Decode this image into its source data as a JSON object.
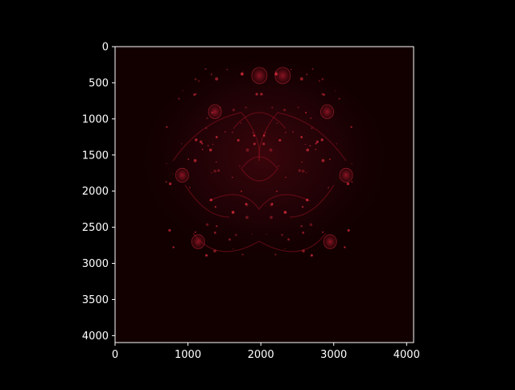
{
  "chart_data": {
    "type": "heatmap",
    "title": "",
    "xlabel": "",
    "ylabel": "",
    "xlim": [
      0,
      4096
    ],
    "ylim": [
      4096,
      0
    ],
    "x_ticks": [
      {
        "value": 0,
        "label": "0"
      },
      {
        "value": 1000,
        "label": "1000"
      },
      {
        "value": 2000,
        "label": "2000"
      },
      {
        "value": 3000,
        "label": "3000"
      },
      {
        "value": 4000,
        "label": "4000"
      }
    ],
    "y_ticks": [
      {
        "value": 0,
        "label": "0"
      },
      {
        "value": 500,
        "label": "500"
      },
      {
        "value": 1000,
        "label": "1000"
      },
      {
        "value": 1500,
        "label": "1500"
      },
      {
        "value": 2000,
        "label": "2000"
      },
      {
        "value": 2500,
        "label": "2500"
      },
      {
        "value": 3000,
        "label": "3000"
      },
      {
        "value": 3500,
        "label": "3500"
      },
      {
        "value": 4000,
        "label": "4000"
      }
    ],
    "grid": false,
    "image_description_colors": {
      "background": "#120000",
      "accent": "#8a1020",
      "highlight": "#d02a3a"
    },
    "features": [
      {
        "x": 1980,
        "y": 400,
        "rx": 130,
        "ry": 140
      },
      {
        "x": 2300,
        "y": 400,
        "rx": 130,
        "ry": 140
      },
      {
        "x": 1370,
        "y": 900,
        "rx": 110,
        "ry": 120
      },
      {
        "x": 2910,
        "y": 900,
        "rx": 110,
        "ry": 120
      },
      {
        "x": 920,
        "y": 1780,
        "rx": 110,
        "ry": 120
      },
      {
        "x": 3170,
        "y": 1780,
        "rx": 110,
        "ry": 120
      },
      {
        "x": 1140,
        "y": 2700,
        "rx": 110,
        "ry": 120
      },
      {
        "x": 2950,
        "y": 2700,
        "rx": 110,
        "ry": 120
      }
    ]
  }
}
